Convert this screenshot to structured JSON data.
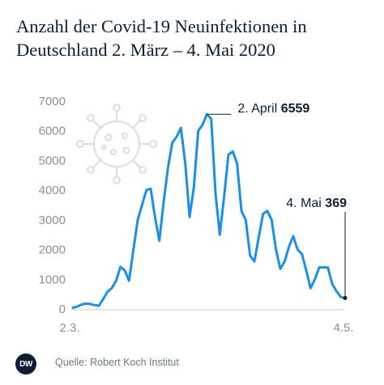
{
  "title": "Anzahl der Covid-19 Neuinfektionen in Deutschland 2. März – 4. Mai 2020",
  "source": "Quelle: Robert Koch Institut",
  "logo_text": "DW",
  "colors": {
    "line": "#1a8fe3",
    "text": "#0a1f33",
    "grid": "#cfd5db",
    "axis_text": "#8a9199",
    "virus": "#d8dde2"
  },
  "chart_data": {
    "type": "line",
    "title": "Anzahl der Covid-19 Neuinfektionen in Deutschland 2. März – 4. Mai 2020",
    "xlabel": "",
    "ylabel": "",
    "ylim": [
      0,
      7000
    ],
    "yticks": [
      "0",
      "1000",
      "2000",
      "3000",
      "4000",
      "5000",
      "6000",
      "7000"
    ],
    "x_tick_labels": [
      "2.3.",
      "4.5."
    ],
    "grid": false,
    "series": [
      {
        "values": [
          40,
          80,
          150,
          180,
          170,
          130,
          110,
          330,
          580,
          700,
          950,
          1420,
          1300,
          950,
          2000,
          3000,
          3500,
          4000,
          4050,
          3100,
          2300,
          3600,
          4750,
          5600,
          5800,
          6100,
          4900,
          3100,
          4100,
          6000,
          6200,
          6559,
          6400,
          3900,
          2500,
          3800,
          5200,
          5300,
          4900,
          3300,
          3000,
          1800,
          1600,
          2400,
          3200,
          3300,
          3000,
          2000,
          1350,
          1600,
          2100,
          2450,
          2000,
          1850,
          1300,
          700,
          1000,
          1400,
          1400,
          1400,
          850,
          600,
          400,
          369
        ]
      }
    ],
    "annotations": [
      {
        "label": "2. April",
        "value_label": "6559",
        "x_index": 31,
        "value": 6559
      },
      {
        "label": "4. Mai",
        "value_label": "369",
        "x_index": 63,
        "value": 369
      }
    ]
  }
}
